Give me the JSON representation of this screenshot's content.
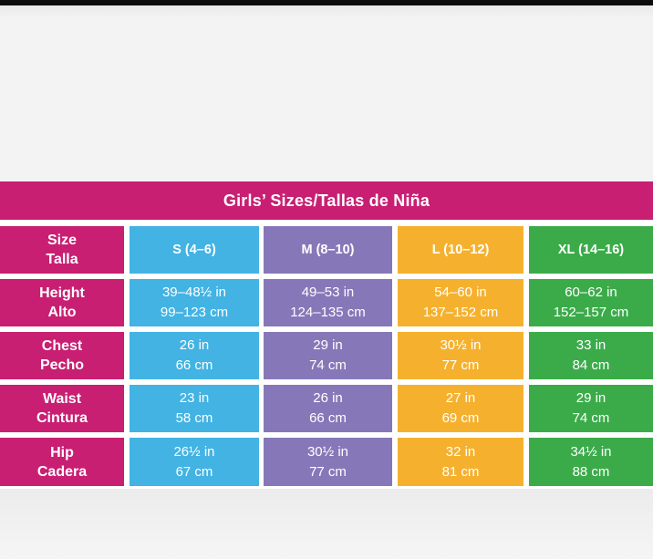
{
  "title": "Girls’ Sizes/Tallas de Niña",
  "header": {
    "label_en": "Size",
    "label_es": "Talla",
    "columns": [
      "S (4–6)",
      "M (8–10)",
      "L (10–12)",
      "XL (14–16)"
    ]
  },
  "rows": [
    {
      "label_en": "Height",
      "label_es": "Alto",
      "values": [
        {
          "in": "39–48½ in",
          "cm": "99–123 cm"
        },
        {
          "in": "49–53 in",
          "cm": "124–135 cm"
        },
        {
          "in": "54–60 in",
          "cm": "137–152 cm"
        },
        {
          "in": "60–62 in",
          "cm": "152–157 cm"
        }
      ]
    },
    {
      "label_en": "Chest",
      "label_es": "Pecho",
      "values": [
        {
          "in": "26 in",
          "cm": "66 cm"
        },
        {
          "in": "29 in",
          "cm": "74 cm"
        },
        {
          "in": "30½ in",
          "cm": "77 cm"
        },
        {
          "in": "33 in",
          "cm": "84 cm"
        }
      ]
    },
    {
      "label_en": "Waist",
      "label_es": "Cintura",
      "values": [
        {
          "in": "23 in",
          "cm": "58 cm"
        },
        {
          "in": "26 in",
          "cm": "66 cm"
        },
        {
          "in": "27 in",
          "cm": "69 cm"
        },
        {
          "in": "29 in",
          "cm": "74 cm"
        }
      ]
    },
    {
      "label_en": "Hip",
      "label_es": "Cadera",
      "values": [
        {
          "in": "26½ in",
          "cm": "67 cm"
        },
        {
          "in": "30½ in",
          "cm": "77 cm"
        },
        {
          "in": "32 in",
          "cm": "81 cm"
        },
        {
          "in": "34½ in",
          "cm": "88 cm"
        }
      ]
    }
  ],
  "colors": {
    "label_column": "#c81f73",
    "S": "#42b3e3",
    "M": "#8678b8",
    "L": "#f5b12e",
    "XL": "#3bab4a"
  }
}
